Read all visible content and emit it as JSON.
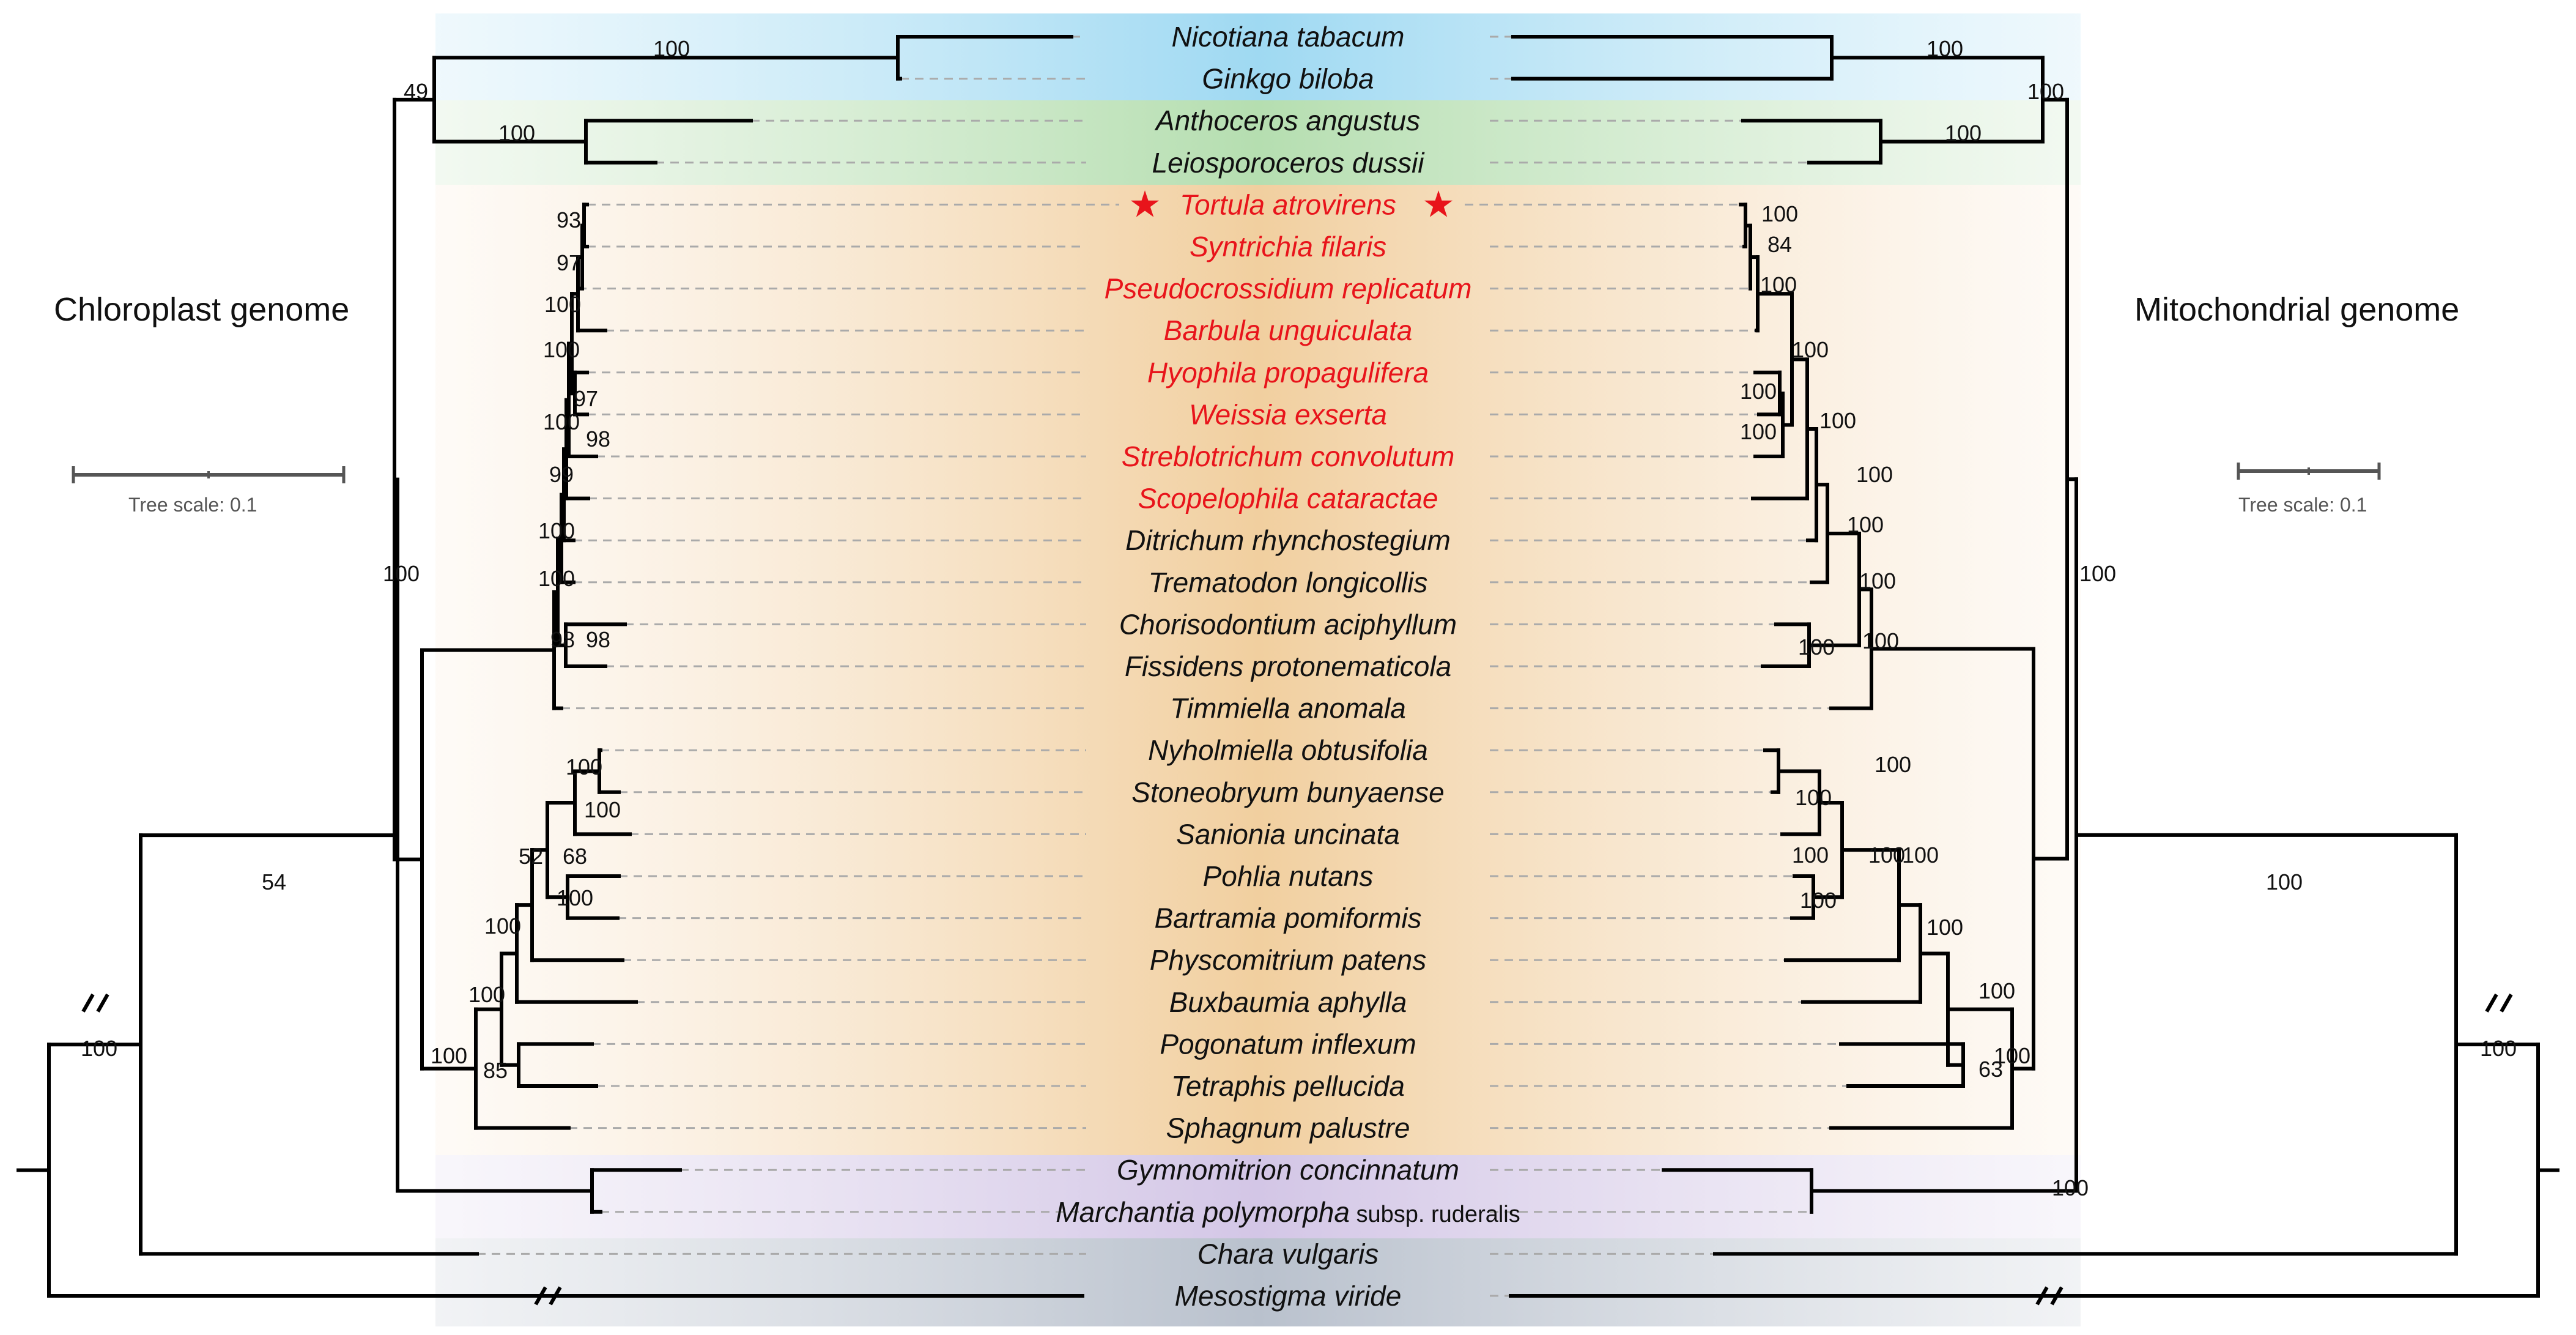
{
  "titles": {
    "left": "Chloroplast genome",
    "right": "Mitochondrial genome"
  },
  "scale": {
    "left_label": "Tree scale: 0.1",
    "right_label": "Tree scale: 0.1"
  },
  "colors": {
    "blue_band": "#bfe6f6",
    "green_band": "#cce8c8",
    "orange_band": "#f3d7b0",
    "purple_band": "#ded5ec",
    "gray_band": "#c9cfd8",
    "red_label": "#e8141b",
    "star": "#e8141b"
  },
  "star_icon": "★",
  "taxa": [
    {
      "name": "Nicotiana tabacum",
      "red": false,
      "star": false
    },
    {
      "name": "Ginkgo biloba",
      "red": false,
      "star": false
    },
    {
      "name": "Anthoceros angustus",
      "red": false,
      "star": false
    },
    {
      "name": "Leiosporoceros dussii",
      "red": false,
      "star": false
    },
    {
      "name": "Tortula atrovirens",
      "red": true,
      "star": true
    },
    {
      "name": "Syntrichia filaris",
      "red": true,
      "star": false
    },
    {
      "name": "Pseudocrossidium replicatum",
      "red": true,
      "star": false
    },
    {
      "name": "Barbula unguiculata",
      "red": true,
      "star": false
    },
    {
      "name": "Hyophila propagulifera",
      "red": true,
      "star": false
    },
    {
      "name": "Weissia exserta",
      "red": true,
      "star": false
    },
    {
      "name": "Streblotrichum convolutum",
      "red": true,
      "star": false
    },
    {
      "name": "Scopelophila cataractae",
      "red": true,
      "star": false
    },
    {
      "name": "Ditrichum rhynchostegium",
      "red": false,
      "star": false
    },
    {
      "name": "Trematodon longicollis",
      "red": false,
      "star": false
    },
    {
      "name": "Chorisodontium aciphyllum",
      "red": false,
      "star": false
    },
    {
      "name": "Fissidens protonematicola",
      "red": false,
      "star": false
    },
    {
      "name": "Timmiella anomala",
      "red": false,
      "star": false
    },
    {
      "name": "Nyholmiella obtusifolia",
      "red": false,
      "star": false
    },
    {
      "name": "Stoneobryum bunyaense",
      "red": false,
      "star": false
    },
    {
      "name": "Sanionia uncinata",
      "red": false,
      "star": false
    },
    {
      "name": "Pohlia nutans",
      "red": false,
      "star": false
    },
    {
      "name": "Bartramia pomiformis",
      "red": false,
      "star": false
    },
    {
      "name": "Physcomitrium patens",
      "red": false,
      "star": false
    },
    {
      "name": "Buxbaumia aphylla",
      "red": false,
      "star": false
    },
    {
      "name": "Pogonatum inflexum",
      "red": false,
      "star": false
    },
    {
      "name": "Tetraphis pellucida",
      "red": false,
      "star": false
    },
    {
      "name": "Sphagnum palustre",
      "red": false,
      "star": false
    },
    {
      "name": "Gymnomitrion concinnatum",
      "red": false,
      "star": false
    },
    {
      "name": "Marchantia polymorpha",
      "suffix": " subsp. ruderalis",
      "red": false,
      "star": false
    },
    {
      "name": "Chara vulgaris",
      "red": false,
      "star": false
    },
    {
      "name": "Mesostigma viride",
      "red": false,
      "star": false
    }
  ],
  "left_support": [
    "100",
    "49",
    "100",
    "93",
    "97",
    "100",
    "100",
    "97",
    "100",
    "98",
    "99",
    "100",
    "100",
    "98",
    "98",
    "100",
    "100",
    "52",
    "68",
    "100",
    "100",
    "100",
    "85",
    "100",
    "100",
    "54",
    "100"
  ],
  "right_support": [
    "100",
    "100",
    "100",
    "100",
    "84",
    "100",
    "100",
    "100",
    "100",
    "100",
    "100",
    "100",
    "100",
    "100",
    "100",
    "100",
    "100",
    "100",
    "100",
    "100",
    "100",
    "100",
    "100",
    "63",
    "100",
    "100",
    "100",
    "100",
    "100"
  ]
}
